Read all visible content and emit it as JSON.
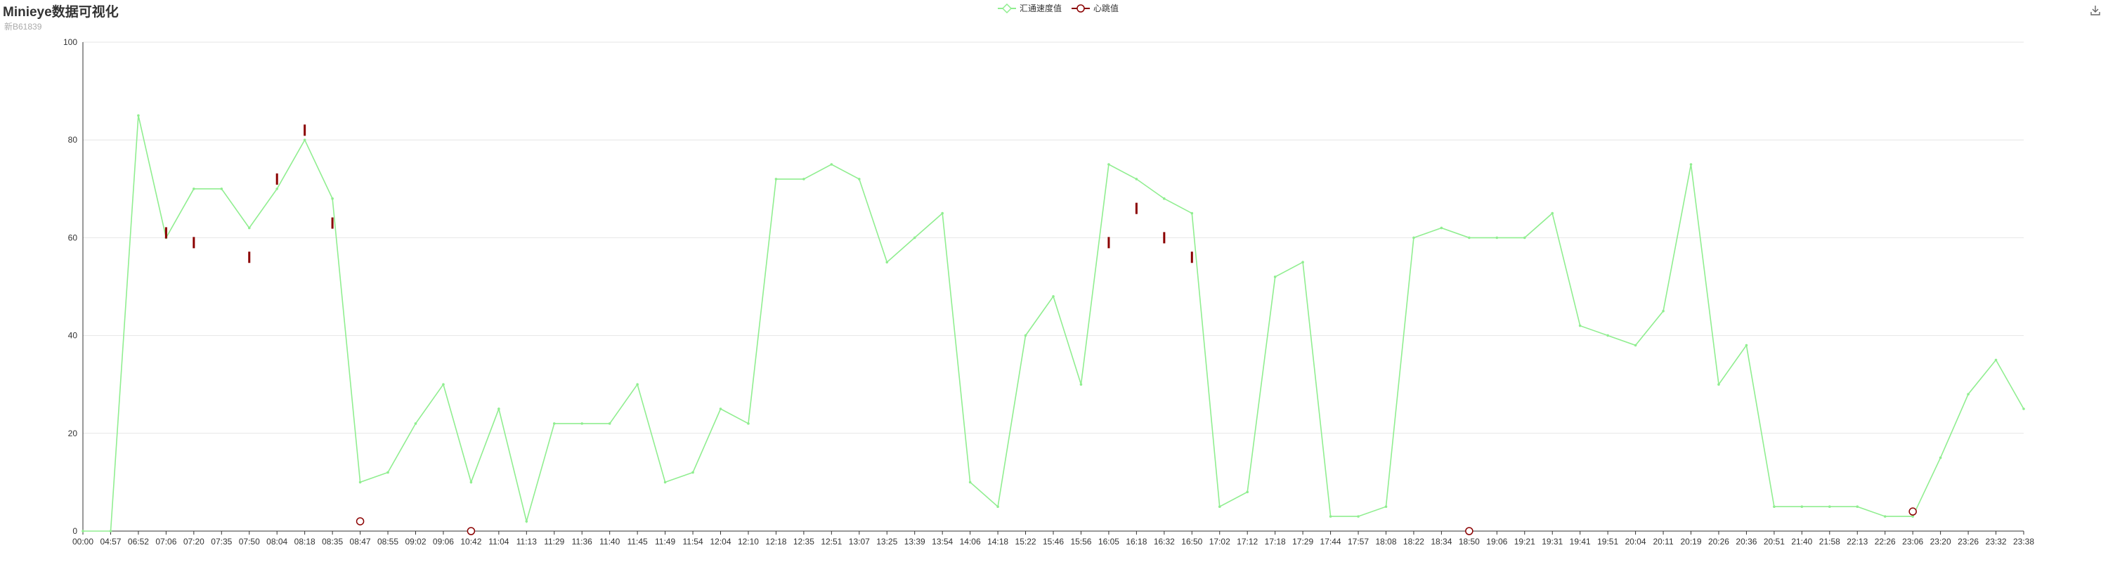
{
  "title": "Minieye数据可视化",
  "subtitle": "新B61839",
  "legend": {
    "items": [
      {
        "label": "汇通速度值",
        "color": "#90ee90",
        "symbol": "diamond"
      },
      {
        "label": "心跳值",
        "color": "#8b0000",
        "symbol": "circle"
      }
    ]
  },
  "toolbar": {
    "download_icon": "download-icon"
  },
  "chart_data": {
    "type": "line",
    "title": "Minieye数据可视化",
    "subtitle": "新B61839",
    "xlabel": "",
    "ylabel": "",
    "ylim": [
      0,
      100
    ],
    "yticks": [
      0,
      20,
      40,
      60,
      80,
      100
    ],
    "grid": true,
    "legend_position": "top-center",
    "categories": [
      "00:00",
      "04:57",
      "06:52",
      "07:06",
      "07:20",
      "07:35",
      "07:50",
      "08:04",
      "08:18",
      "08:35",
      "08:47",
      "08:55",
      "09:02",
      "09:06",
      "10:42",
      "11:04",
      "11:13",
      "11:29",
      "11:36",
      "11:40",
      "11:45",
      "11:49",
      "11:54",
      "12:04",
      "12:10",
      "12:18",
      "12:35",
      "12:51",
      "13:07",
      "13:25",
      "13:39",
      "13:54",
      "14:06",
      "14:18",
      "15:22",
      "15:46",
      "15:56",
      "16:05",
      "16:18",
      "16:32",
      "16:50",
      "17:02",
      "17:12",
      "17:18",
      "17:29",
      "17:44",
      "17:57",
      "18:08",
      "18:22",
      "18:34",
      "18:50",
      "19:06",
      "19:21",
      "19:31",
      "19:41",
      "19:51",
      "20:04",
      "20:11",
      "20:19",
      "20:26",
      "20:36",
      "20:51",
      "21:40",
      "21:58",
      "22:13",
      "22:26",
      "23:06",
      "23:20",
      "23:26",
      "23:32",
      "23:38"
    ],
    "series": [
      {
        "name": "汇通速度值",
        "color": "#90ee90",
        "values": [
          0,
          0,
          85,
          60,
          70,
          70,
          62,
          70,
          80,
          68,
          10,
          12,
          22,
          30,
          10,
          25,
          2,
          22,
          22,
          22,
          30,
          10,
          12,
          25,
          22,
          72,
          72,
          75,
          72,
          55,
          60,
          65,
          10,
          5,
          40,
          48,
          30,
          75,
          72,
          68,
          65,
          5,
          8,
          52,
          55,
          3,
          3,
          5,
          60,
          62,
          60,
          60,
          60,
          65,
          42,
          40,
          38,
          45,
          75,
          30,
          38,
          5,
          5,
          5,
          5,
          3,
          3,
          15,
          28,
          35,
          25
        ]
      },
      {
        "name": "心跳值",
        "color": "#8b0000",
        "values": [
          null,
          null,
          null,
          61,
          59,
          null,
          56,
          72,
          82,
          63,
          2,
          null,
          null,
          null,
          0,
          null,
          null,
          null,
          null,
          null,
          null,
          null,
          null,
          null,
          null,
          null,
          null,
          null,
          null,
          null,
          null,
          null,
          null,
          null,
          null,
          null,
          null,
          59,
          66,
          60,
          56,
          null,
          null,
          null,
          null,
          null,
          null,
          null,
          null,
          null,
          0,
          null,
          null,
          null,
          null,
          null,
          null,
          null,
          null,
          null,
          null,
          null,
          null,
          null,
          null,
          null,
          4,
          null,
          null,
          null,
          null
        ]
      }
    ]
  }
}
